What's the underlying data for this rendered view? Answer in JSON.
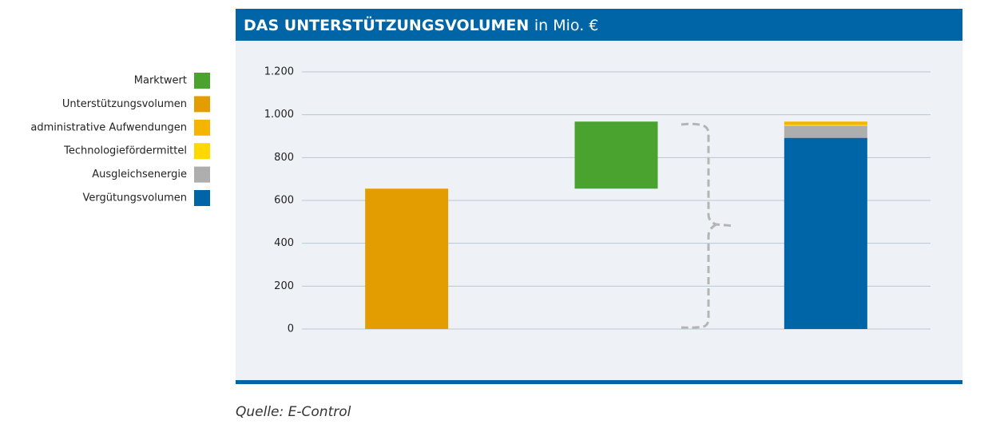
{
  "chart_data": {
    "type": "waterfall",
    "title": "DAS UNTERSTÜTZUNGSVOLUMEN",
    "subtitle": "in Mio. €",
    "categories": [
      null,
      null,
      null
    ],
    "series": [
      {
        "name": "Marktwert",
        "color": "#4aa22f",
        "values": [
          null,
          313,
          null
        ]
      },
      {
        "name": "Unterstützungsvolumen",
        "color": "#e39d00",
        "values": [
          655,
          null,
          null
        ]
      },
      {
        "name": "administrative Aufwendungen",
        "color": "#f5b400",
        "values": [
          null,
          null,
          15
        ]
      },
      {
        "name": "Technologiefördermittel",
        "color": "#ffd800",
        "values": [
          null,
          null,
          5
        ]
      },
      {
        "name": "Ausgleichsenergie",
        "color": "#aeaeae",
        "values": [
          null,
          null,
          56
        ]
      },
      {
        "name": "Vergütungsvolumen",
        "color": "#0065a6",
        "values": [
          null,
          null,
          892
        ]
      }
    ],
    "ylim": [
      0,
      1200
    ],
    "yticks": [
      0,
      200,
      400,
      600,
      800,
      {
        "value": 1000,
        "label": "1.000"
      },
      {
        "value": 1200,
        "label": "1.200"
      }
    ],
    "grid": true,
    "legend": "left",
    "source": "Quelle: E-Control"
  }
}
